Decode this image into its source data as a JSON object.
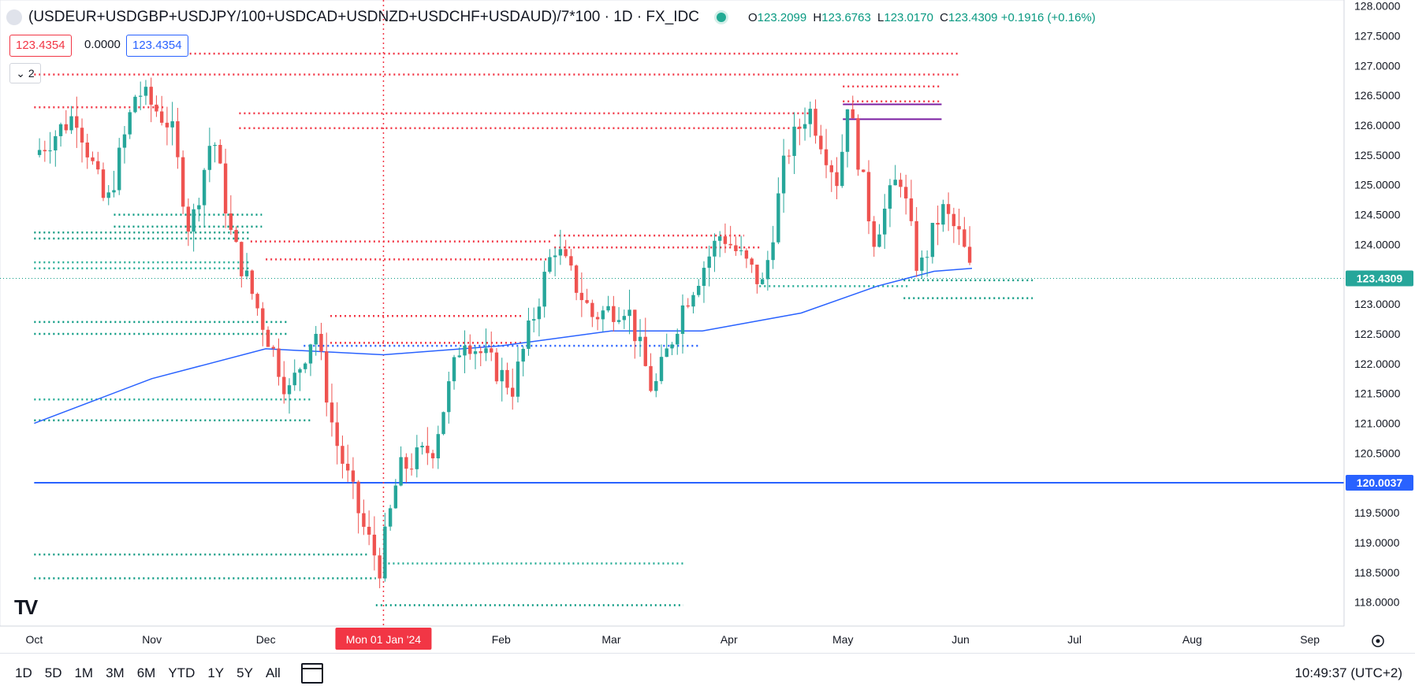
{
  "header": {
    "symbol": "(USDEUR+USDGBP+USDJPY/100+USDCAD+USDNZD+USDCHF+USDAUD)/7*100 · 1D · FX_IDC",
    "open_label": "O",
    "open": "123.2099",
    "high_label": "H",
    "high": "123.6763",
    "low_label": "L",
    "low": "123.0170",
    "close_label": "C",
    "close": "123.4309",
    "change": "+0.1916 (+0.16%)"
  },
  "badges": {
    "price_left": "123.4354",
    "change_mid": "0.0000",
    "price_right": "123.4354"
  },
  "indicator_collapse": "2",
  "timeframes": [
    "1D",
    "5D",
    "1M",
    "3M",
    "6M",
    "YTD",
    "1Y",
    "5Y",
    "All"
  ],
  "clock": "10:49:37 (UTC+2)",
  "colors": {
    "up": "#26a69a",
    "down": "#ef5350",
    "ma": "#2962ff",
    "level_red": "#f23645",
    "level_green": "#089981",
    "purple": "#7b1fa2"
  },
  "chart_data": {
    "type": "candlestick",
    "ylim": [
      117.6,
      128.1
    ],
    "y_ticks": [
      "128.0000",
      "127.5000",
      "127.0000",
      "126.5000",
      "126.0000",
      "125.5000",
      "125.0000",
      "124.5000",
      "124.0000",
      "123.5000",
      "123.0000",
      "122.5000",
      "122.0000",
      "121.5000",
      "121.0000",
      "120.5000",
      "120.0000",
      "119.5000",
      "119.0000",
      "118.5000",
      "118.0000"
    ],
    "x_ticks": [
      "Oct",
      "Nov",
      "Dec",
      "Mon 01 Jan '24",
      "Feb",
      "Mar",
      "Apr",
      "May",
      "Jun",
      "Jul",
      "Aug",
      "Sep"
    ],
    "crosshair_date_label": "Mon 01 Jan '24",
    "last_price_label": "123.4309",
    "horizontal_line_label": "120.0037",
    "close_path": [
      {
        "date": "2023-10-01",
        "close": 125.5
      },
      {
        "date": "2023-10-12",
        "close": 126.2
      },
      {
        "date": "2023-10-20",
        "close": 124.6
      },
      {
        "date": "2023-10-28",
        "close": 126.6
      },
      {
        "date": "2023-11-06",
        "close": 126.0
      },
      {
        "date": "2023-11-11",
        "close": 124.2
      },
      {
        "date": "2023-11-17",
        "close": 125.9
      },
      {
        "date": "2023-11-22",
        "close": 124.1
      },
      {
        "date": "2023-11-29",
        "close": 122.9
      },
      {
        "date": "2023-12-07",
        "close": 121.5
      },
      {
        "date": "2023-12-14",
        "close": 122.6
      },
      {
        "date": "2023-12-19",
        "close": 120.8
      },
      {
        "date": "2023-12-27",
        "close": 119.2
      },
      {
        "date": "2023-12-31",
        "close": 118.6
      },
      {
        "date": "2024-01-05",
        "close": 120.2
      },
      {
        "date": "2024-01-14",
        "close": 120.6
      },
      {
        "date": "2024-01-22",
        "close": 122.5
      },
      {
        "date": "2024-02-04",
        "close": 121.6
      },
      {
        "date": "2024-02-15",
        "close": 124.0
      },
      {
        "date": "2024-02-25",
        "close": 122.8
      },
      {
        "date": "2024-03-05",
        "close": 123.0
      },
      {
        "date": "2024-03-12",
        "close": 121.5
      },
      {
        "date": "2024-03-20",
        "close": 123.0
      },
      {
        "date": "2024-03-30",
        "close": 124.2
      },
      {
        "date": "2024-04-10",
        "close": 123.3
      },
      {
        "date": "2024-04-16",
        "close": 125.5
      },
      {
        "date": "2024-04-22",
        "close": 126.3
      },
      {
        "date": "2024-04-30",
        "close": 125.0
      },
      {
        "date": "2024-05-02",
        "close": 126.5
      },
      {
        "date": "2024-05-09",
        "close": 124.1
      },
      {
        "date": "2024-05-16",
        "close": 125.2
      },
      {
        "date": "2024-05-21",
        "close": 123.5
      },
      {
        "date": "2024-05-27",
        "close": 124.6
      },
      {
        "date": "2024-06-01",
        "close": 124.1
      },
      {
        "date": "2024-06-04",
        "close": 123.43
      }
    ],
    "moving_average": [
      {
        "date": "2023-10-01",
        "value": 121.0
      },
      {
        "date": "2023-11-01",
        "value": 121.75
      },
      {
        "date": "2023-12-01",
        "value": 122.25
      },
      {
        "date": "2024-01-01",
        "value": 122.15
      },
      {
        "date": "2024-02-01",
        "value": 122.3
      },
      {
        "date": "2024-03-01",
        "value": 122.55
      },
      {
        "date": "2024-03-25",
        "value": 122.55
      },
      {
        "date": "2024-04-20",
        "value": 122.85
      },
      {
        "date": "2024-05-10",
        "value": 123.3
      },
      {
        "date": "2024-05-25",
        "value": 123.55
      },
      {
        "date": "2024-06-04",
        "value": 123.6
      }
    ],
    "levels": [
      {
        "price": 127.2,
        "from": "2023-11-01",
        "to": "2024-06-01",
        "color": "red",
        "style": "dotted"
      },
      {
        "price": 126.85,
        "from": "2023-10-01",
        "to": "2024-06-01",
        "color": "red",
        "style": "dotted"
      },
      {
        "price": 126.3,
        "from": "2023-10-01",
        "to": "2023-11-04",
        "color": "red",
        "style": "dotted"
      },
      {
        "price": 126.2,
        "from": "2023-11-24",
        "to": "2024-04-22",
        "color": "red",
        "style": "dotted"
      },
      {
        "price": 125.95,
        "from": "2023-11-24",
        "to": "2024-04-20",
        "color": "red",
        "style": "dotted"
      },
      {
        "price": 126.65,
        "from": "2024-05-01",
        "to": "2024-05-27",
        "color": "red",
        "style": "dotted"
      },
      {
        "price": 126.4,
        "from": "2024-05-01",
        "to": "2024-05-27",
        "color": "red",
        "style": "dotted"
      },
      {
        "price": 126.35,
        "from": "2024-05-01",
        "to": "2024-05-27",
        "color": "purple",
        "style": "solid"
      },
      {
        "price": 126.1,
        "from": "2024-05-01",
        "to": "2024-05-27",
        "color": "purple",
        "style": "solid"
      },
      {
        "price": 124.15,
        "from": "2024-02-15",
        "to": "2024-04-05",
        "color": "red",
        "style": "dotted"
      },
      {
        "price": 124.05,
        "from": "2023-11-27",
        "to": "2024-02-14",
        "color": "red",
        "style": "dotted"
      },
      {
        "price": 123.95,
        "from": "2024-02-15",
        "to": "2024-04-09",
        "color": "red",
        "style": "dotted"
      },
      {
        "price": 123.75,
        "from": "2023-12-01",
        "to": "2024-02-14",
        "color": "red",
        "style": "dotted"
      },
      {
        "price": 122.8,
        "from": "2023-12-18",
        "to": "2024-02-07",
        "color": "red",
        "style": "dotted"
      },
      {
        "price": 122.35,
        "from": "2023-12-18",
        "to": "2024-02-07",
        "color": "red",
        "style": "dotted"
      },
      {
        "price": 122.3,
        "from": "2023-12-11",
        "to": "2024-03-24",
        "color": "blue",
        "style": "dotted"
      },
      {
        "price": 124.5,
        "from": "2023-10-22",
        "to": "2023-11-30",
        "color": "green",
        "style": "dotted"
      },
      {
        "price": 124.3,
        "from": "2023-10-22",
        "to": "2023-11-30",
        "color": "green",
        "style": "dotted"
      },
      {
        "price": 124.2,
        "from": "2023-10-01",
        "to": "2023-11-27",
        "color": "green",
        "style": "dotted"
      },
      {
        "price": 124.1,
        "from": "2023-10-01",
        "to": "2023-11-27",
        "color": "green",
        "style": "dotted"
      },
      {
        "price": 123.7,
        "from": "2023-10-01",
        "to": "2023-11-27",
        "color": "teal",
        "style": "dotted"
      },
      {
        "price": 123.6,
        "from": "2023-10-01",
        "to": "2023-11-27",
        "color": "teal",
        "style": "dotted"
      },
      {
        "price": 122.7,
        "from": "2023-10-01",
        "to": "2023-12-07",
        "color": "green",
        "style": "dotted"
      },
      {
        "price": 122.5,
        "from": "2023-10-01",
        "to": "2023-12-07",
        "color": "green",
        "style": "dotted"
      },
      {
        "price": 121.4,
        "from": "2023-10-01",
        "to": "2023-12-13",
        "color": "teal",
        "style": "dotted"
      },
      {
        "price": 121.05,
        "from": "2023-10-01",
        "to": "2023-12-13",
        "color": "green",
        "style": "dotted"
      },
      {
        "price": 118.8,
        "from": "2023-10-01",
        "to": "2023-12-28",
        "color": "green",
        "style": "dotted"
      },
      {
        "price": 118.65,
        "from": "2024-01-01",
        "to": "2024-03-20",
        "color": "teal",
        "style": "dotted"
      },
      {
        "price": 118.4,
        "from": "2023-10-01",
        "to": "2023-12-30",
        "color": "green",
        "style": "dotted"
      },
      {
        "price": 117.95,
        "from": "2023-12-30",
        "to": "2024-03-20",
        "color": "green",
        "style": "dotted"
      },
      {
        "price": 123.4,
        "from": "2024-05-17",
        "to": "2024-06-20",
        "color": "green",
        "style": "dotted"
      },
      {
        "price": 123.3,
        "from": "2024-04-09",
        "to": "2024-05-18",
        "color": "teal",
        "style": "dotted"
      },
      {
        "price": 123.1,
        "from": "2024-05-17",
        "to": "2024-06-20",
        "color": "green",
        "style": "dotted"
      },
      {
        "price": 120.0037,
        "from": "2023-10-01",
        "to": "2024-09-10",
        "color": "blue",
        "style": "solid"
      }
    ]
  }
}
